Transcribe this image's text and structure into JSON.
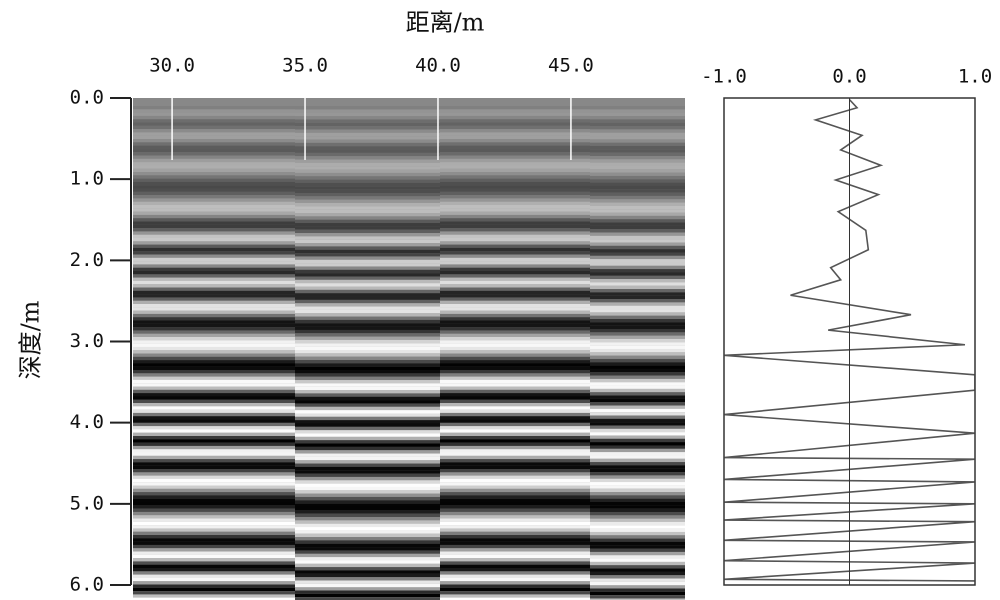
{
  "chart_data": [
    {
      "type": "radargram",
      "title": "距离/m",
      "ylabel": "深度/m",
      "xlim": [
        28.53,
        49.29
      ],
      "ylim": [
        0,
        6
      ],
      "xticks": [
        {
          "value": 30,
          "label": "30.0"
        },
        {
          "value": 35,
          "label": "35.0"
        },
        {
          "value": 40,
          "label": "40.0"
        },
        {
          "value": 45,
          "label": "45.0"
        }
      ],
      "yticks": [
        {
          "value": 0,
          "label": "0.0"
        },
        {
          "value": 1,
          "label": "1.0"
        },
        {
          "value": 2,
          "label": "2.0"
        },
        {
          "value": 3,
          "label": "3.0"
        },
        {
          "value": 4,
          "label": "4.0"
        },
        {
          "value": 5,
          "label": "5.0"
        },
        {
          "value": 6,
          "label": "6.0"
        }
      ]
    },
    {
      "type": "trace",
      "xlim": [
        -1,
        1
      ],
      "ylim": [
        0,
        6
      ],
      "xticks": [
        {
          "value": -1,
          "label": "-1.0"
        },
        {
          "value": 0,
          "label": "0.0"
        },
        {
          "value": 1,
          "label": "1.0"
        }
      ],
      "color": "#555555",
      "depths": [
        0.02,
        0.12,
        0.27,
        0.46,
        0.64,
        0.83,
        1.01,
        1.19,
        1.4,
        1.63,
        1.87,
        2.09,
        2.24,
        2.43,
        2.67,
        2.86,
        3.04,
        3.17,
        3.41,
        3.6,
        3.9,
        4.13,
        4.43,
        4.45,
        4.7,
        4.73,
        4.98,
        5.0,
        5.2,
        5.22,
        5.45,
        5.47,
        5.7,
        5.73,
        5.93,
        5.95
      ],
      "values": [
        0,
        0.06,
        -0.27,
        0.1,
        -0.07,
        0.25,
        -0.11,
        0.23,
        -0.09,
        0.13,
        0.15,
        -0.15,
        -0.07,
        -0.47,
        0.49,
        -0.17,
        0.92,
        -1,
        1,
        1,
        -1,
        1,
        -1,
        1,
        -1,
        1,
        -1,
        1,
        -1,
        1,
        -1,
        1,
        -1,
        1,
        -1,
        1
      ]
    }
  ]
}
